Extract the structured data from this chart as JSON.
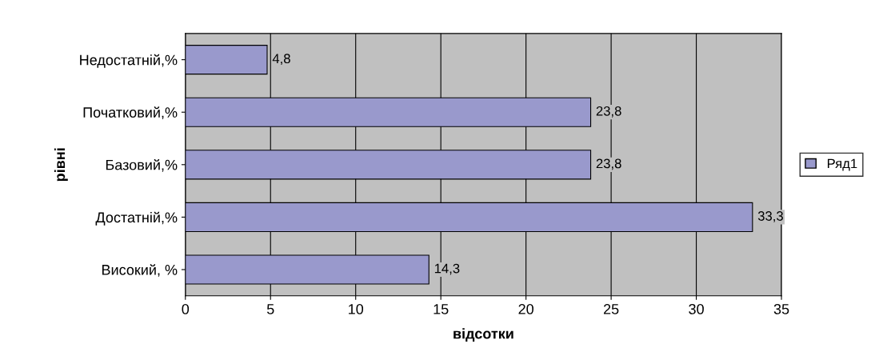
{
  "chart_data": {
    "type": "bar",
    "orientation": "horizontal",
    "categories": [
      "Недостатній,%",
      "Початковий,%",
      "Базовий,%",
      "Достатній,%",
      "Високий, %"
    ],
    "series": [
      {
        "name": "Ряд1",
        "color": "#9999cc",
        "values": [
          4.8,
          23.8,
          23.8,
          33.3,
          14.3
        ],
        "value_labels": [
          "4,8",
          "23,8",
          "23,8",
          "33,3",
          "14,3"
        ]
      }
    ],
    "xlabel": "відсотки",
    "ylabel": "рівні",
    "xlim": [
      0,
      35
    ],
    "xticks": [
      0,
      5,
      10,
      15,
      20,
      25,
      30,
      35
    ],
    "grid": "x",
    "legend": "right"
  }
}
